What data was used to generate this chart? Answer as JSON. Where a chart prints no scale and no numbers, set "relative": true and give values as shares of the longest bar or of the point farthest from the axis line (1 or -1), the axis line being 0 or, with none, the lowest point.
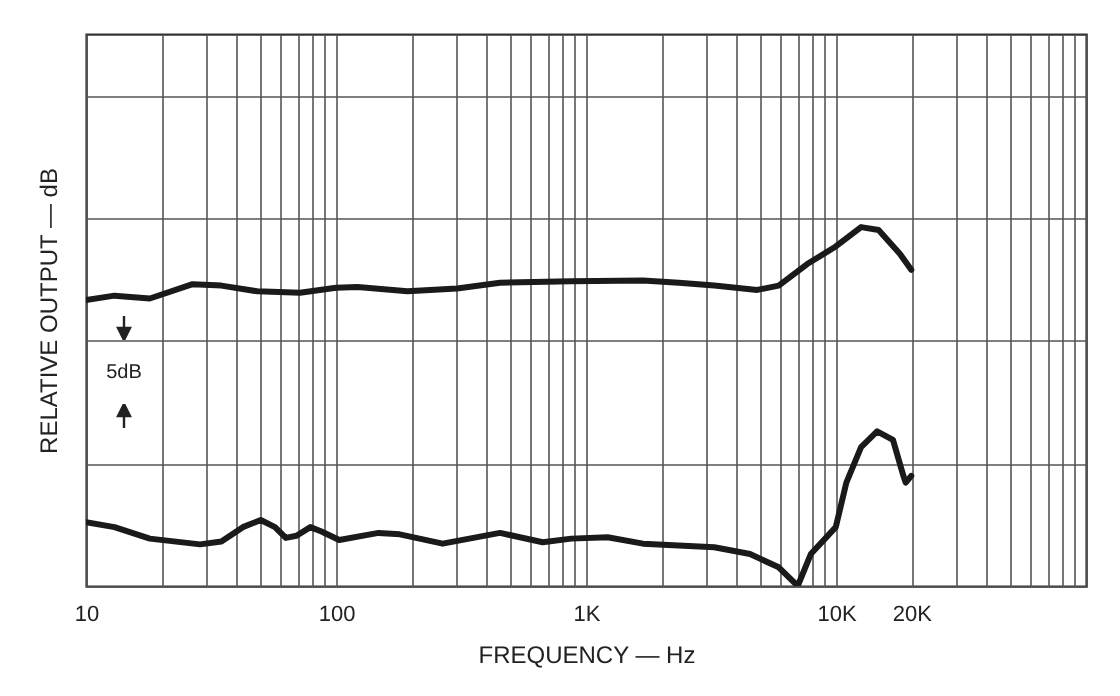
{
  "chart_data": {
    "type": "line",
    "relative": true,
    "log": "x",
    "grid": true,
    "marker": "none",
    "line_style": "solid",
    "xlabel": "FREQUENCY — Hz",
    "ylabel": "RELATIVE OUTPUT — dB",
    "annotations": [
      "5dB"
    ],
    "xlim": [
      10,
      100000
    ],
    "xticks": [
      10,
      {
        "value": 20,
        "label": null
      },
      {
        "value": 30,
        "label": null
      },
      {
        "value": 40,
        "label": null
      },
      {
        "value": 50,
        "label": null
      },
      {
        "value": 60,
        "label": null
      },
      {
        "value": 70,
        "label": null
      },
      {
        "value": 80,
        "label": null
      },
      {
        "value": 90,
        "label": null
      },
      100,
      {
        "value": 200,
        "label": null
      },
      {
        "value": 300,
        "label": null
      },
      {
        "value": 400,
        "label": null
      },
      {
        "value": 500,
        "label": null
      },
      {
        "value": 600,
        "label": null
      },
      {
        "value": 700,
        "label": null
      },
      {
        "value": 800,
        "label": null
      },
      {
        "value": 900,
        "label": null
      },
      {
        "value": 1000,
        "label": "1K"
      },
      {
        "value": 2000,
        "label": null
      },
      {
        "value": 3000,
        "label": null
      },
      {
        "value": 4000,
        "label": null
      },
      {
        "value": 5000,
        "label": null
      },
      {
        "value": 6000,
        "label": null
      },
      {
        "value": 7000,
        "label": null
      },
      {
        "value": 8000,
        "label": null
      },
      {
        "value": 9000,
        "label": null
      },
      {
        "value": 10000,
        "label": "10K"
      },
      {
        "value": 20000,
        "label": "20K"
      },
      {
        "value": 30000,
        "label": null
      },
      {
        "value": 40000,
        "label": null
      },
      {
        "value": 50000,
        "label": null
      },
      {
        "value": 60000,
        "label": null
      },
      {
        "value": 70000,
        "label": null
      },
      {
        "value": 80000,
        "label": null
      },
      {
        "value": 90000,
        "label": null
      },
      {
        "value": 100000,
        "label": null
      }
    ],
    "series": [
      {
        "color": "#1a1a1a",
        "x": [
          10,
          13,
          18,
          26.7,
          34.8,
          48.4,
          71.8,
          100,
          122,
          193,
          305,
          453,
          874,
          1690,
          2350,
          3260,
          4840,
          5900,
          7670,
          9980,
          12600,
          14800,
          18000,
          20000
        ],
        "values": [
          0.797,
          0.809,
          0.801,
          0.841,
          0.837,
          0.821,
          0.817,
          0.831,
          0.833,
          0.821,
          0.829,
          0.845,
          0.849,
          0.851,
          0.845,
          0.837,
          0.825,
          0.837,
          0.897,
          0.946,
          1,
          0.992,
          0.926,
          0.881
        ]
      },
      {
        "color": "#1a1a1a",
        "x": [
          10,
          13,
          18,
          28.6,
          34.8,
          42.4,
          50,
          57,
          63,
          69.5,
          79,
          87.5,
          103,
          148,
          180,
          267,
          453,
          671,
          874,
          1220,
          1690,
          3260,
          4530,
          5900,
          7030,
          7930,
          9980,
          11000,
          12600,
          14600,
          16900,
          18600,
          19000,
          20000
        ],
        "values": [
          0.178,
          0.164,
          0.132,
          0.116,
          0.124,
          0.164,
          0.184,
          0.164,
          0.134,
          0.14,
          0.164,
          0.152,
          0.128,
          0.148,
          0.144,
          0.118,
          0.148,
          0.122,
          0.132,
          0.136,
          0.118,
          0.108,
          0.089,
          0.052,
          0,
          0.089,
          0.164,
          0.288,
          0.387,
          0.431,
          0.407,
          0.307,
          0.288,
          0.307
        ]
      }
    ]
  }
}
